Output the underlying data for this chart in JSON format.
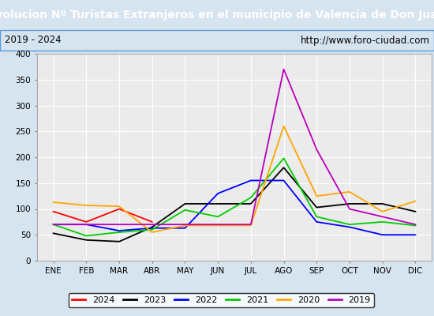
{
  "title": "Evolucion Nº Turistas Extranjeros en el municipio de Valencia de Don Juan",
  "subtitle_left": "2019 - 2024",
  "subtitle_right": "http://www.foro-ciudad.com",
  "months": [
    "ENE",
    "FEB",
    "MAR",
    "ABR",
    "MAY",
    "JUN",
    "JUL",
    "AGO",
    "SEP",
    "OCT",
    "NOV",
    "DIC"
  ],
  "series": {
    "2024": {
      "color": "#ff0000",
      "data": [
        95,
        75,
        100,
        75,
        null,
        null,
        null,
        null,
        null,
        null,
        null,
        null
      ]
    },
    "2023": {
      "color": "#000000",
      "data": [
        53,
        40,
        37,
        65,
        110,
        110,
        110,
        180,
        103,
        110,
        110,
        95
      ]
    },
    "2022": {
      "color": "#0000ff",
      "data": [
        70,
        70,
        58,
        63,
        63,
        130,
        155,
        155,
        75,
        65,
        50,
        50
      ]
    },
    "2021": {
      "color": "#00cc00",
      "data": [
        70,
        48,
        55,
        60,
        98,
        85,
        122,
        198,
        85,
        70,
        75,
        68
      ]
    },
    "2020": {
      "color": "#ffa500",
      "data": [
        113,
        107,
        105,
        55,
        68,
        68,
        68,
        260,
        125,
        133,
        95,
        115
      ]
    },
    "2019": {
      "color": "#bb00bb",
      "data": [
        70,
        70,
        70,
        70,
        70,
        70,
        70,
        370,
        215,
        100,
        85,
        70
      ]
    }
  },
  "ylim": [
    0,
    400
  ],
  "yticks": [
    0,
    50,
    100,
    150,
    200,
    250,
    300,
    350,
    400
  ],
  "title_bg_color": "#5b9bd5",
  "title_text_color": "#ffffff",
  "plot_bg_color": "#ebebeb",
  "outer_bg_color": "#d6e4f0",
  "grid_color": "#ffffff",
  "border_color": "#5b9bd5",
  "title_fontsize": 10,
  "axis_fontsize": 7.5,
  "legend_fontsize": 8
}
